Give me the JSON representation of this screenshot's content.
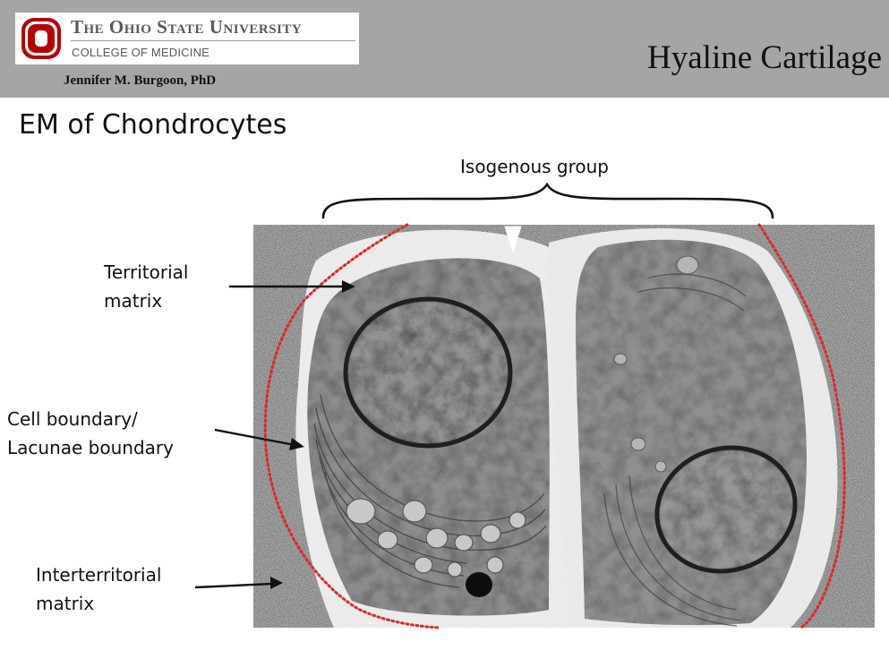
{
  "header": {
    "university": "The Ohio State University",
    "college": "COLLEGE OF MEDICINE",
    "author": "Jennifer M. Burgoon, PhD",
    "deck_title": "Hyaline Cartilage"
  },
  "slide": {
    "title": "EM of Chondrocytes",
    "labels": {
      "isogenous_group": "Isogenous group",
      "territorial_matrix": [
        "Territorial",
        "matrix"
      ],
      "cell_boundary": [
        "Cell boundary/",
        "Lacunae boundary"
      ],
      "interterritorial_matrix": [
        "Interterritorial",
        "matrix"
      ]
    }
  },
  "colors": {
    "header_band": "#a5a5a5",
    "logo_red": "#bb0000",
    "outline_dots": "#e0262c"
  },
  "icons": {
    "logo": "block-o-logo",
    "arrowhead": "white-arrowhead"
  }
}
